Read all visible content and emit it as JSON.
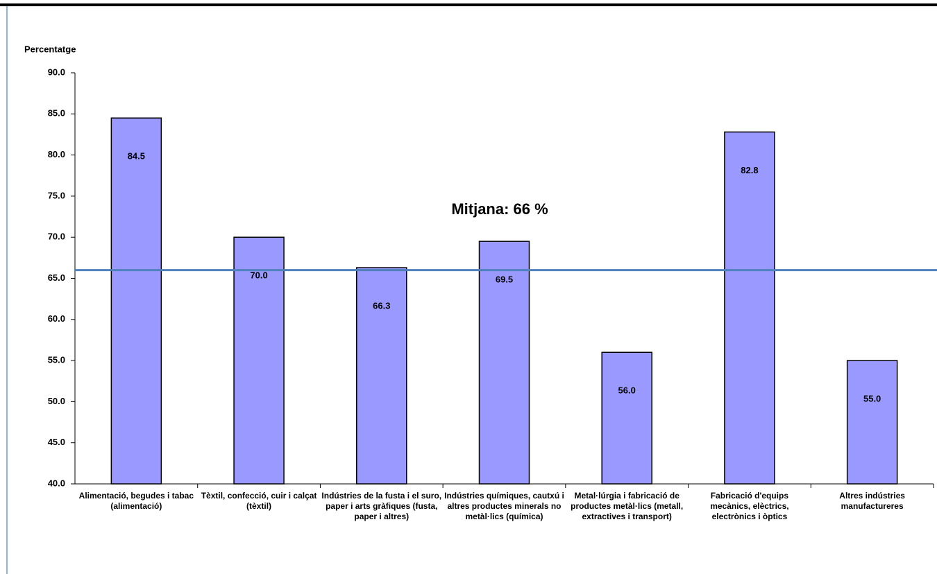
{
  "chart_data": {
    "type": "bar",
    "y_label": "Percentatge",
    "categories": [
      "Alimentació, begudes i tabac (alimentació)",
      "Tèxtil, confecció, cuir i calçat (tèxtil)",
      "Indústries de la fusta i el suro, paper i arts gràfiques (fusta, paper i altres)",
      "Indústries químiques, cautxú i altres productes minerals no metàl·lics (química)",
      "Metal·lúrgia i fabricació de productes metàl·lics (metall, extractives i transport)",
      "Fabricació d'equips mecànics, elèctrics, electrònics i òptics",
      "Altres indústries manufactureres"
    ],
    "values": [
      84.5,
      70,
      66.3,
      69.5,
      56,
      82.8,
      55
    ],
    "value_labels": [
      "84.5",
      "70.0",
      "66.3",
      "69.5",
      "56.0",
      "82.8",
      "55.0"
    ],
    "color": "#9999ff",
    "ylim": [
      40,
      90
    ],
    "yticks": [
      {
        "value": 40,
        "label": "40.0"
      },
      {
        "value": 45,
        "label": "45.0"
      },
      {
        "value": 50,
        "label": "50.0"
      },
      {
        "value": 55,
        "label": "55.0"
      },
      {
        "value": 60,
        "label": "60.0"
      },
      {
        "value": 65,
        "label": "65.0"
      },
      {
        "value": 70,
        "label": "70.0"
      },
      {
        "value": 75,
        "label": "75.0"
      },
      {
        "value": 80,
        "label": "80.0"
      },
      {
        "value": 85,
        "label": "85.0"
      },
      {
        "value": 90,
        "label": "90.0"
      }
    ],
    "mean": {
      "label": "Mitjana: 66 %",
      "value": 66,
      "color": "#4f81bd"
    }
  }
}
